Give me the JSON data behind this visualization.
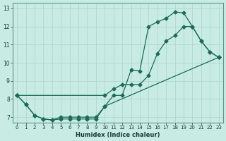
{
  "xlabel": "Humidex (Indice chaleur)",
  "bg_color": "#c8ebe3",
  "line_color": "#1a6b5a",
  "grid_color": "#b0d8d0",
  "xlim": [
    -0.5,
    23.5
  ],
  "ylim": [
    6.7,
    13.3
  ],
  "xticks": [
    0,
    1,
    2,
    3,
    4,
    5,
    6,
    7,
    8,
    9,
    10,
    11,
    12,
    13,
    14,
    15,
    16,
    17,
    18,
    19,
    20,
    21,
    22,
    23
  ],
  "yticks": [
    7,
    8,
    9,
    10,
    11,
    12,
    13
  ],
  "curve1_x": [
    0,
    1,
    2,
    3,
    4,
    5,
    6,
    7,
    8,
    9,
    10,
    11,
    12,
    13,
    14,
    15,
    16,
    17,
    18,
    19,
    20,
    21,
    22,
    23
  ],
  "curve1_y": [
    8.2,
    7.7,
    7.1,
    6.9,
    6.85,
    7.0,
    7.0,
    7.0,
    7.0,
    7.0,
    7.6,
    8.2,
    8.2,
    9.6,
    9.55,
    12.0,
    12.25,
    12.45,
    12.8,
    12.75,
    12.0,
    11.2,
    10.6,
    10.3
  ],
  "curve2_x": [
    0,
    10,
    11,
    12,
    13,
    14,
    15,
    16,
    17,
    18,
    19,
    20,
    21,
    22,
    23
  ],
  "curve2_y": [
    8.2,
    8.2,
    8.55,
    8.8,
    8.8,
    8.8,
    9.3,
    10.5,
    11.2,
    11.5,
    12.0,
    12.0,
    11.2,
    10.6,
    10.3
  ],
  "curve3_x": [
    0,
    1,
    2,
    3,
    4,
    5,
    6,
    7,
    8,
    9,
    10,
    23
  ],
  "curve3_y": [
    8.2,
    7.7,
    7.1,
    6.9,
    6.85,
    6.9,
    6.9,
    6.9,
    6.9,
    6.9,
    7.6,
    10.3
  ]
}
